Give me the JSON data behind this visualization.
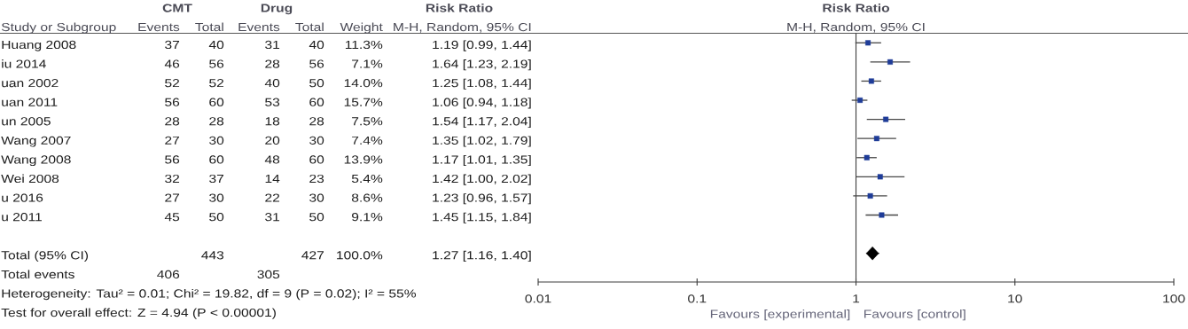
{
  "chart_data": [
    {
      "type": "other",
      "ylabel": "Study or Subgroup",
      "categories": [
        "Huang 2008",
        "iu 2014",
        "uan 2002",
        "uan 2011",
        "un 2005",
        "Wang 2007",
        "Wang 2008",
        "Wei 2008",
        "u 2016",
        "u 2011",
        null,
        "Total (95% CI)",
        "Total events"
      ],
      "series": [
        {
          "name": "Events",
          "values": [
            37,
            46,
            52,
            56,
            28,
            27,
            56,
            32,
            27,
            45,
            null,
            null,
            406
          ]
        },
        {
          "name": "Total",
          "values": [
            40,
            56,
            52,
            60,
            28,
            30,
            60,
            37,
            30,
            50,
            null,
            443,
            null
          ]
        },
        {
          "name": "Events",
          "values": [
            31,
            28,
            40,
            53,
            18,
            20,
            48,
            14,
            22,
            31,
            null,
            null,
            305
          ]
        },
        {
          "name": "Total",
          "values": [
            40,
            56,
            50,
            60,
            28,
            30,
            60,
            23,
            30,
            50,
            null,
            427,
            null
          ]
        },
        {
          "name": "Weight",
          "values": [
            11.3,
            7.1,
            14.0,
            15.7,
            7.5,
            7.4,
            13.9,
            5.4,
            8.6,
            9.1,
            null,
            100.0,
            null
          ],
          "value_labels": [
            "11.3%",
            "7.1%",
            "14.0%",
            "15.7%",
            "7.5%",
            "7.4%",
            "13.9%",
            "5.4%",
            "8.6%",
            "9.1%",
            null,
            "100.0%",
            null
          ]
        },
        {
          "name": "M-H, Random, 95% CI",
          "values": [
            1.19,
            1.64,
            1.25,
            1.06,
            1.54,
            1.35,
            1.17,
            1.42,
            1.23,
            1.45,
            null,
            1.27,
            null
          ],
          "value_labels": [
            "1.19 [0.99, 1.44]",
            "1.64 [1.23, 2.19]",
            "1.25 [1.08, 1.44]",
            "1.06 [0.94, 1.18]",
            "1.54 [1.17, 2.04]",
            "1.35 [1.02, 1.79]",
            "1.17 [1.01, 1.35]",
            "1.42 [1.00, 2.02]",
            "1.23 [0.96, 1.57]",
            "1.45 [1.15, 1.84]",
            null,
            "1.27 [1.16, 1.40]",
            null
          ]
        }
      ],
      "data_labels": true,
      "annotations": [
        "CMT",
        "Drug",
        "Risk Ratio",
        "Heterogeneity: Tau² = 0.01; Chi² = 19.82, df = 9 (P = 0.02); I² = 55%",
        "Test for overall effect: Z = 4.94 (P < 0.00001)"
      ]
    },
    {
      "type": "scatter",
      "orientation": "horizontal",
      "title": "Risk Ratio",
      "subtitle": "M-H, Random, 95% CI",
      "categories": [
        null,
        null,
        null,
        null,
        null,
        null,
        null,
        null,
        null,
        null,
        null,
        null,
        null
      ],
      "series": [
        {
          "color": "#1f3c98",
          "marker": "square",
          "values": [
            1.19,
            1.64,
            1.25,
            1.06,
            1.54,
            1.35,
            1.17,
            1.42,
            1.23,
            1.45,
            null,
            null,
            null
          ],
          "errors": [
            [
              0.99,
              1.44
            ],
            [
              1.23,
              2.19
            ],
            [
              1.08,
              1.44
            ],
            [
              0.94,
              1.18
            ],
            [
              1.17,
              2.04
            ],
            [
              1.02,
              1.79
            ],
            [
              1.01,
              1.35
            ],
            [
              1.0,
              2.02
            ],
            [
              0.96,
              1.57
            ],
            [
              1.15,
              1.84
            ],
            null,
            null,
            null
          ]
        },
        {
          "color": "#000000",
          "marker": "diamond",
          "values": [
            null,
            null,
            null,
            null,
            null,
            null,
            null,
            null,
            null,
            null,
            null,
            1.27,
            null
          ],
          "errors": [
            null,
            null,
            null,
            null,
            null,
            null,
            null,
            null,
            null,
            null,
            null,
            [
              1.16,
              1.4
            ],
            null
          ]
        }
      ],
      "xlim": [
        0.01,
        100
      ],
      "xticks": [
        0.01,
        0.1,
        1,
        10,
        100
      ],
      "log": "x",
      "tick_labels": "x",
      "ref_lines": [
        {
          "axis": "x",
          "value": 1,
          "color": "#3c3c3c"
        }
      ],
      "annotations": [
        "Favours [experimental]",
        "Favours [control]"
      ]
    }
  ]
}
